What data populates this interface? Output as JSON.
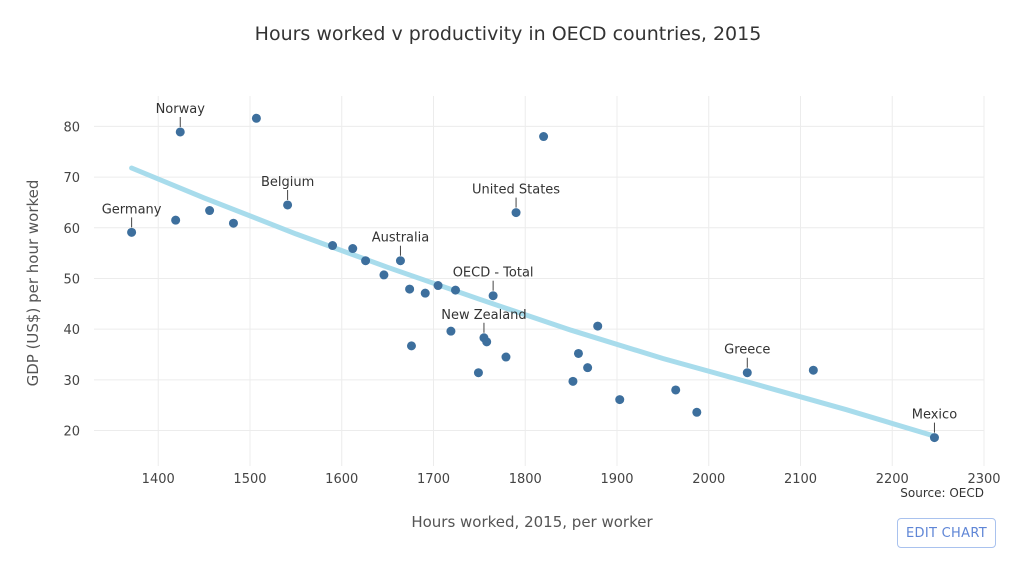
{
  "chart_data": {
    "type": "scatter",
    "title": "Hours worked v productivity in OECD countries, 2015",
    "xlabel": "Hours worked, 2015, per worker",
    "ylabel": "GDP (US$) per hour worked",
    "xlim": [
      1330,
      2300
    ],
    "ylim": [
      13,
      86
    ],
    "xticks": [
      1400,
      1500,
      1600,
      1700,
      1800,
      1900,
      2000,
      2100,
      2200,
      2300
    ],
    "yticks": [
      20,
      30,
      40,
      50,
      60,
      70,
      80
    ],
    "grid": true,
    "source": "Source: OECD",
    "points_color": "#3d6f9d",
    "trend_color": "#a8dcec",
    "points": [
      {
        "x": 1371,
        "y": 59.1
      },
      {
        "x": 1419,
        "y": 61.5
      },
      {
        "x": 1424,
        "y": 78.9
      },
      {
        "x": 1456,
        "y": 63.4
      },
      {
        "x": 1482,
        "y": 60.9
      },
      {
        "x": 1507,
        "y": 81.6
      },
      {
        "x": 1541,
        "y": 64.5
      },
      {
        "x": 1590,
        "y": 56.5
      },
      {
        "x": 1612,
        "y": 55.9
      },
      {
        "x": 1626,
        "y": 53.5
      },
      {
        "x": 1646,
        "y": 50.7
      },
      {
        "x": 1664,
        "y": 53.5
      },
      {
        "x": 1674,
        "y": 47.9
      },
      {
        "x": 1676,
        "y": 36.7
      },
      {
        "x": 1691,
        "y": 47.1
      },
      {
        "x": 1705,
        "y": 48.6
      },
      {
        "x": 1719,
        "y": 39.6
      },
      {
        "x": 1724,
        "y": 47.7
      },
      {
        "x": 1749,
        "y": 31.4
      },
      {
        "x": 1755,
        "y": 38.3
      },
      {
        "x": 1758,
        "y": 37.5
      },
      {
        "x": 1765,
        "y": 46.6
      },
      {
        "x": 1779,
        "y": 34.5
      },
      {
        "x": 1790,
        "y": 63.0
      },
      {
        "x": 1820,
        "y": 78.0
      },
      {
        "x": 1852,
        "y": 29.7
      },
      {
        "x": 1858,
        "y": 35.2
      },
      {
        "x": 1868,
        "y": 32.4
      },
      {
        "x": 1879,
        "y": 40.6
      },
      {
        "x": 1903,
        "y": 26.1
      },
      {
        "x": 1964,
        "y": 28.0
      },
      {
        "x": 1987,
        "y": 23.6
      },
      {
        "x": 2042,
        "y": 31.4
      },
      {
        "x": 2114,
        "y": 31.9
      },
      {
        "x": 2246,
        "y": 18.6
      }
    ],
    "trendline": [
      {
        "x": 1371,
        "y": 71.8
      },
      {
        "x": 1450,
        "y": 65.9
      },
      {
        "x": 1550,
        "y": 58.8
      },
      {
        "x": 1650,
        "y": 52.2
      },
      {
        "x": 1750,
        "y": 45.9
      },
      {
        "x": 1850,
        "y": 39.8
      },
      {
        "x": 1950,
        "y": 34.2
      },
      {
        "x": 2050,
        "y": 29.2
      },
      {
        "x": 2150,
        "y": 24.1
      },
      {
        "x": 2246,
        "y": 18.9
      }
    ],
    "annotations": [
      {
        "label": "Norway",
        "x": 1424,
        "y": 78.9
      },
      {
        "label": "Germany",
        "x": 1371,
        "y": 59.1
      },
      {
        "label": "Belgium",
        "x": 1541,
        "y": 64.5
      },
      {
        "label": "Australia",
        "x": 1664,
        "y": 53.5
      },
      {
        "label": "United States",
        "x": 1790,
        "y": 63.0
      },
      {
        "label": "OECD - Total",
        "x": 1765,
        "y": 46.6
      },
      {
        "label": "New Zealand",
        "x": 1755,
        "y": 38.3
      },
      {
        "label": "Greece",
        "x": 2042,
        "y": 31.4
      },
      {
        "label": "Mexico",
        "x": 2246,
        "y": 18.6
      }
    ]
  },
  "ui": {
    "edit_button_label": "EDIT CHART"
  }
}
